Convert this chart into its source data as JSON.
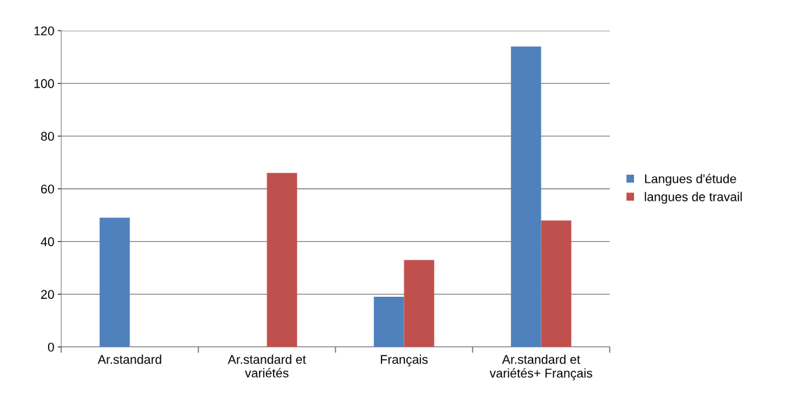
{
  "chart_data": {
    "type": "bar",
    "categories": [
      "Ar.standard",
      "Ar.standard et\nvariétés",
      "Français",
      "Ar.standard et\nvariétés+ Français"
    ],
    "series": [
      {
        "name": "Langues d'étude",
        "color": "#4f81bd",
        "values": [
          49,
          0,
          19,
          114
        ]
      },
      {
        "name": "langues de travail",
        "color": "#c0504d",
        "values": [
          0,
          66,
          33,
          48
        ]
      }
    ],
    "ylim": [
      0,
      120
    ],
    "yticks": [
      0,
      20,
      40,
      60,
      80,
      100,
      120
    ],
    "grid": "y",
    "legend": "right"
  }
}
